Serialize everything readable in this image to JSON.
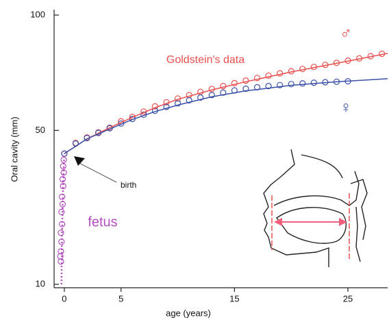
{
  "chart_data": {
    "type": "line",
    "x_label": "age (years)",
    "y_label": "Oral cavity (mm)",
    "xlim": [
      -0.9,
      28.5
    ],
    "ylim": [
      10,
      100
    ],
    "yscale": "sqrt",
    "xticks": [
      0,
      5,
      15,
      25
    ],
    "yticks": [
      10,
      50,
      100
    ],
    "annotations": {
      "goldstein": "Goldstein's data",
      "male": "♂",
      "female": "♀",
      "birth": "birth",
      "fetus": "fetus"
    },
    "series": [
      {
        "style": "circles",
        "color": "#e8504f",
        "x": [
          0,
          1,
          2,
          3,
          4,
          5,
          6,
          7,
          8,
          9,
          10,
          11,
          12,
          13,
          14,
          15,
          16,
          17,
          18,
          19,
          20,
          21,
          22,
          23,
          24,
          25,
          26,
          27,
          28
        ],
        "values": [
          42,
          45.6,
          47.5,
          49.3,
          51,
          53.3,
          55,
          57,
          59,
          60.6,
          62.1,
          63.5,
          64.8,
          66,
          67.2,
          68.4,
          69.5,
          70.6,
          71.6,
          72.6,
          73.5,
          74.5,
          75.4,
          76.3,
          77.2,
          78.2,
          79.2,
          80.2,
          81.3
        ]
      },
      {
        "style": "circles",
        "color": "#3a4fa8",
        "x": [
          0,
          1,
          2,
          3,
          4,
          5,
          6,
          7,
          8,
          9,
          10,
          11,
          12,
          13,
          14,
          15,
          16,
          17,
          18,
          19,
          20,
          21,
          22,
          23,
          24,
          25
        ],
        "values": [
          42,
          45.4,
          47.3,
          49.1,
          50.8,
          52.5,
          54.2,
          55.8,
          57.3,
          58.8,
          60.2,
          61.4,
          62.5,
          63.5,
          64.5,
          65.4,
          66.1,
          66.7,
          67.2,
          67.6,
          68,
          68.3,
          68.6,
          68.8,
          69,
          69.2
        ]
      },
      {
        "style": "line",
        "color": "#e8504f",
        "x": [
          0,
          2,
          4,
          6,
          8,
          10,
          13,
          16,
          20,
          24,
          28.5
        ],
        "values": [
          42,
          47,
          51,
          54.8,
          58.5,
          61.8,
          65.6,
          69,
          73.2,
          77,
          81.5
        ]
      },
      {
        "style": "line",
        "color": "#3a4fa8",
        "x": [
          0,
          2,
          4,
          6,
          8,
          10,
          13,
          16,
          20,
          24,
          28.5
        ],
        "values": [
          42,
          47,
          50.5,
          54,
          57,
          59.5,
          62.8,
          65.2,
          67.5,
          69,
          70.3
        ]
      },
      {
        "style": "circles",
        "color": "#b44fc0",
        "x": [
          -0.05,
          -0.1,
          -0.05,
          -0.15,
          -0.1,
          -0.2,
          -0.15,
          -0.25,
          -0.2,
          -0.3,
          -0.25,
          -0.3,
          -0.35,
          -0.3
        ],
        "values": [
          40,
          38,
          36,
          34,
          32,
          29,
          27,
          25,
          22,
          20,
          18,
          16,
          15,
          14
        ]
      },
      {
        "style": "dotted",
        "color": "#b44fc0",
        "x": [
          -0.25,
          -0.2,
          -0.1,
          0
        ],
        "values": [
          10,
          20,
          33,
          42
        ]
      }
    ]
  }
}
